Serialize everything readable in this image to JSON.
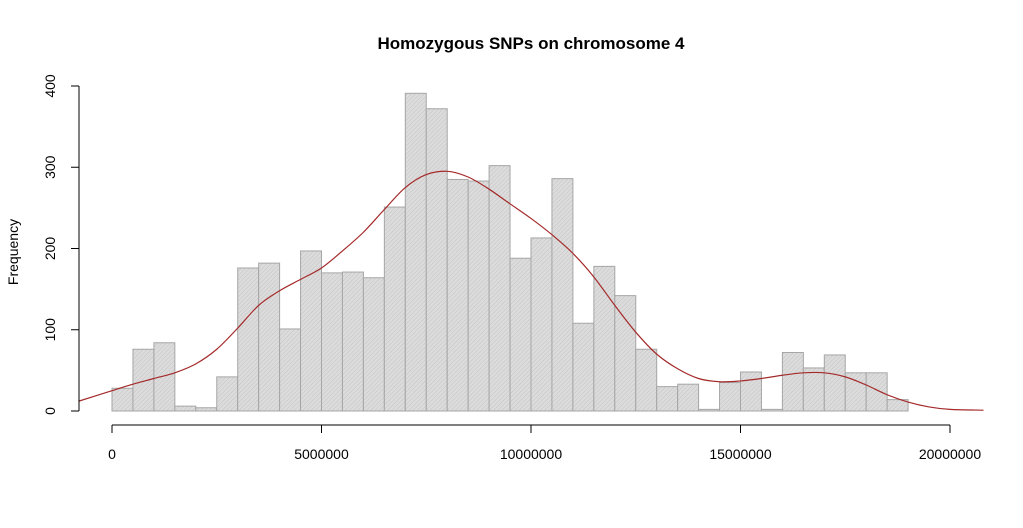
{
  "chart_data": {
    "type": "bar",
    "title": "Homozygous SNPs on chromosome 4",
    "xlabel": "",
    "ylabel": "Frequency",
    "bin_width": 500000,
    "bin_start": 0,
    "values": [
      28,
      76,
      84,
      6,
      4,
      42,
      176,
      182,
      101,
      197,
      170,
      171,
      164,
      251,
      391,
      372,
      285,
      283,
      302,
      188,
      213,
      286,
      108,
      178,
      142,
      76,
      30,
      33,
      2,
      35,
      48,
      2,
      72,
      53,
      69,
      47,
      47,
      14
    ],
    "xlim": [
      0,
      20000000
    ],
    "ylim": [
      0,
      400
    ],
    "x_ticks": [
      0,
      5000000,
      10000000,
      15000000,
      20000000
    ],
    "y_ticks": [
      0,
      100,
      200,
      300,
      400
    ],
    "x_tick_labels": [
      "0",
      "5000000",
      "10000000",
      "15000000",
      "20000000"
    ],
    "y_tick_labels": [
      "0",
      "100",
      "200",
      "300",
      "400"
    ],
    "density_curve": {
      "x": [
        -800000,
        0,
        500000,
        1000000,
        1500000,
        2000000,
        2500000,
        3000000,
        3500000,
        4000000,
        4500000,
        5000000,
        5500000,
        6000000,
        6500000,
        7000000,
        7500000,
        8000000,
        8500000,
        9000000,
        9500000,
        10000000,
        10500000,
        11000000,
        11500000,
        12000000,
        12500000,
        13000000,
        13500000,
        14000000,
        14500000,
        15000000,
        15500000,
        16000000,
        16500000,
        17000000,
        17500000,
        18000000,
        18500000,
        19000000,
        19500000,
        20000000,
        20800000
      ],
      "y": [
        12,
        25,
        33,
        40,
        47,
        58,
        76,
        102,
        130,
        148,
        162,
        176,
        197,
        220,
        248,
        275,
        291,
        295,
        288,
        273,
        255,
        237,
        217,
        194,
        165,
        130,
        97,
        70,
        52,
        40,
        36,
        37,
        40,
        44,
        47,
        47,
        42,
        32,
        20,
        11,
        5,
        2,
        1
      ]
    },
    "colors": {
      "bar_fill": "#d9d9d9",
      "bar_stroke": "#a6a6a6",
      "curve": "#a52a2a",
      "axis": "#000000"
    },
    "grid": false,
    "legend": "none"
  }
}
